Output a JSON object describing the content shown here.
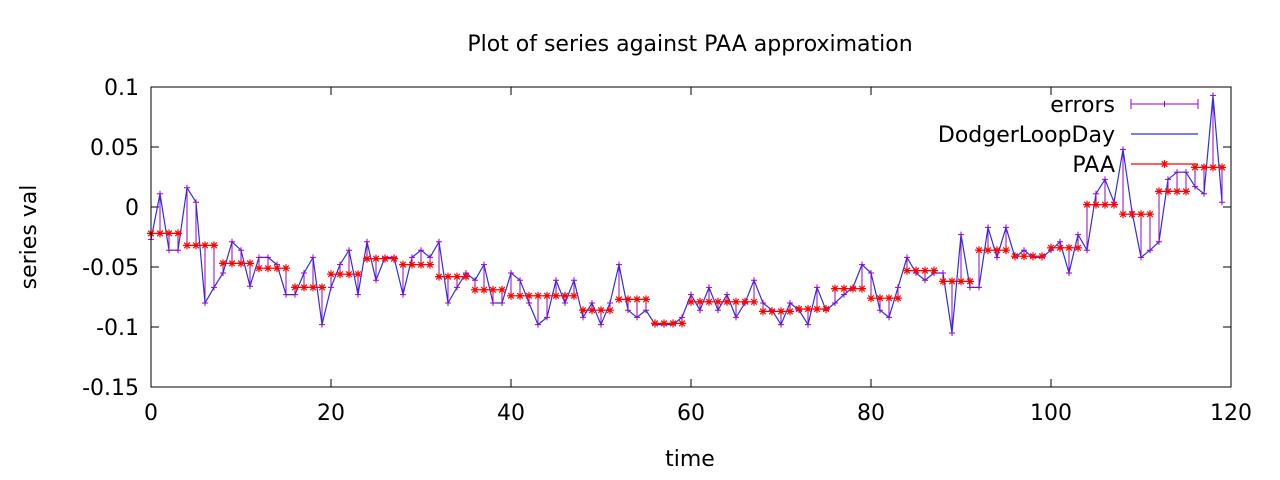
{
  "chart_data": {
    "type": "line",
    "title": "Plot of series against PAA approximation",
    "xlabel": "time",
    "ylabel": "series val",
    "xlim": [
      0,
      120
    ],
    "ylim": [
      -0.15,
      0.1
    ],
    "xticks": [
      0,
      20,
      40,
      60,
      80,
      100,
      120
    ],
    "xtick_labels": [
      "0",
      "20",
      "40",
      "60",
      "80",
      "100",
      "120"
    ],
    "yticks": [
      -0.15,
      -0.1,
      -0.05,
      0,
      0.05,
      0.1
    ],
    "ytick_labels": [
      "-0.15",
      "-0.1",
      "-0.05",
      "0",
      "0.05",
      "0.1"
    ],
    "grid": false,
    "legend_position": "top-right",
    "series": [
      {
        "name": "errors",
        "color": "#9400d3",
        "style": "vertical error bars between series and PAA"
      },
      {
        "name": "DodgerLoopDay",
        "color": "#2f2fe0",
        "x": [
          0,
          1,
          2,
          3,
          4,
          5,
          6,
          7,
          8,
          9,
          10,
          11,
          12,
          13,
          14,
          15,
          16,
          17,
          18,
          19,
          20,
          21,
          22,
          23,
          24,
          25,
          26,
          27,
          28,
          29,
          30,
          31,
          32,
          33,
          34,
          35,
          36,
          37,
          38,
          39,
          40,
          41,
          42,
          43,
          44,
          45,
          46,
          47,
          48,
          49,
          50,
          51,
          52,
          53,
          54,
          55,
          56,
          57,
          58,
          59,
          60,
          61,
          62,
          63,
          64,
          65,
          66,
          67,
          68,
          69,
          70,
          71,
          72,
          73,
          74,
          75,
          76,
          77,
          78,
          79,
          80,
          81,
          82,
          83,
          84,
          85,
          86,
          87,
          88,
          89,
          90,
          91,
          92,
          93,
          94,
          95,
          96,
          97,
          98,
          99,
          100,
          101,
          102,
          103,
          104,
          105,
          106,
          107,
          108,
          109,
          110,
          111,
          112,
          113,
          114,
          115,
          116,
          117,
          118,
          119
        ],
        "values": [
          -0.027,
          0.011,
          -0.036,
          -0.036,
          0.016,
          0.004,
          -0.08,
          -0.067,
          -0.055,
          -0.029,
          -0.036,
          -0.066,
          -0.042,
          -0.042,
          -0.048,
          -0.073,
          -0.073,
          -0.055,
          -0.042,
          -0.098,
          -0.067,
          -0.048,
          -0.036,
          -0.073,
          -0.029,
          -0.061,
          -0.042,
          -0.042,
          -0.073,
          -0.042,
          -0.036,
          -0.042,
          -0.029,
          -0.08,
          -0.067,
          -0.055,
          -0.061,
          -0.048,
          -0.08,
          -0.08,
          -0.055,
          -0.061,
          -0.08,
          -0.098,
          -0.092,
          -0.061,
          -0.08,
          -0.061,
          -0.092,
          -0.08,
          -0.098,
          -0.08,
          -0.048,
          -0.086,
          -0.092,
          -0.086,
          -0.098,
          -0.098,
          -0.098,
          -0.092,
          -0.073,
          -0.086,
          -0.067,
          -0.086,
          -0.073,
          -0.092,
          -0.08,
          -0.061,
          -0.08,
          -0.086,
          -0.098,
          -0.08,
          -0.086,
          -0.098,
          -0.067,
          -0.086,
          -0.08,
          -0.073,
          -0.067,
          -0.048,
          -0.055,
          -0.086,
          -0.092,
          -0.067,
          -0.042,
          -0.055,
          -0.061,
          -0.055,
          -0.055,
          -0.105,
          -0.023,
          -0.067,
          -0.067,
          -0.017,
          -0.042,
          -0.017,
          -0.042,
          -0.036,
          -0.042,
          -0.042,
          -0.036,
          -0.029,
          -0.055,
          -0.023,
          -0.036,
          0.011,
          0.023,
          0.004,
          0.048,
          -0.004,
          -0.042,
          -0.036,
          -0.029,
          0.023,
          0.029,
          0.029,
          0.017,
          0.011,
          0.093,
          0.004
        ]
      },
      {
        "name": "PAA",
        "color": "#ff0000",
        "marker": "*",
        "segments": [
          {
            "from": 0,
            "to": 3,
            "value": -0.022
          },
          {
            "from": 4,
            "to": 7,
            "value": -0.032
          },
          {
            "from": 8,
            "to": 11,
            "value": -0.047
          },
          {
            "from": 12,
            "to": 15,
            "value": -0.051
          },
          {
            "from": 16,
            "to": 19,
            "value": -0.067
          },
          {
            "from": 20,
            "to": 23,
            "value": -0.056
          },
          {
            "from": 24,
            "to": 27,
            "value": -0.043
          },
          {
            "from": 28,
            "to": 31,
            "value": -0.048
          },
          {
            "from": 32,
            "to": 35,
            "value": -0.058
          },
          {
            "from": 36,
            "to": 39,
            "value": -0.069
          },
          {
            "from": 40,
            "to": 47,
            "value": -0.074
          },
          {
            "from": 48,
            "to": 51,
            "value": -0.086
          },
          {
            "from": 52,
            "to": 55,
            "value": -0.077
          },
          {
            "from": 56,
            "to": 59,
            "value": -0.097
          },
          {
            "from": 60,
            "to": 67,
            "value": -0.079
          },
          {
            "from": 68,
            "to": 71,
            "value": -0.087
          },
          {
            "from": 72,
            "to": 75,
            "value": -0.085
          },
          {
            "from": 76,
            "to": 79,
            "value": -0.068
          },
          {
            "from": 80,
            "to": 83,
            "value": -0.076
          },
          {
            "from": 84,
            "to": 87,
            "value": -0.053
          },
          {
            "from": 88,
            "to": 91,
            "value": -0.062
          },
          {
            "from": 92,
            "to": 95,
            "value": -0.036
          },
          {
            "from": 96,
            "to": 99,
            "value": -0.041
          },
          {
            "from": 100,
            "to": 103,
            "value": -0.034
          },
          {
            "from": 104,
            "to": 107,
            "value": 0.002
          },
          {
            "from": 108,
            "to": 111,
            "value": -0.006
          },
          {
            "from": 112,
            "to": 115,
            "value": 0.013
          },
          {
            "from": 116,
            "to": 119,
            "value": 0.033
          }
        ]
      }
    ]
  }
}
